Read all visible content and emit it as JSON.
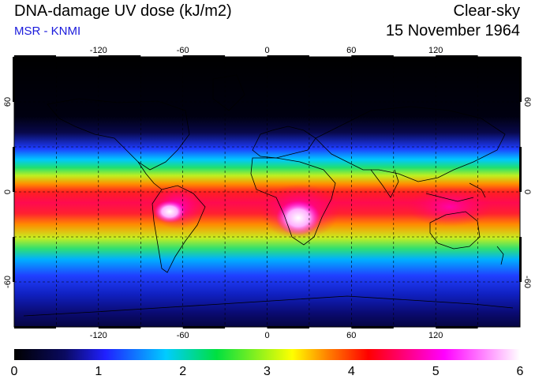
{
  "header": {
    "title": "DNA-damage UV dose (kJ/m2)",
    "source": "MSR - KNMI",
    "sky_condition": "Clear-sky",
    "date": "15 November 1964"
  },
  "map": {
    "lon_ticks": [
      "-120",
      "-60",
      "0",
      "60",
      "120"
    ],
    "lat_ticks": [
      "60",
      "0",
      "-60"
    ],
    "lon_range": [
      -180,
      180
    ],
    "lat_range": [
      -90,
      90
    ],
    "grid_lines": true
  },
  "colorbar": {
    "ticks": [
      "0",
      "1",
      "2",
      "3",
      "4",
      "5",
      "6"
    ],
    "range": [
      0,
      6
    ],
    "colors": [
      "#000000",
      "#0a0a60",
      "#2020ff",
      "#00ccff",
      "#00e040",
      "#ffff00",
      "#ff8000",
      "#ff0000",
      "#ff00ff",
      "#ffffff"
    ]
  }
}
